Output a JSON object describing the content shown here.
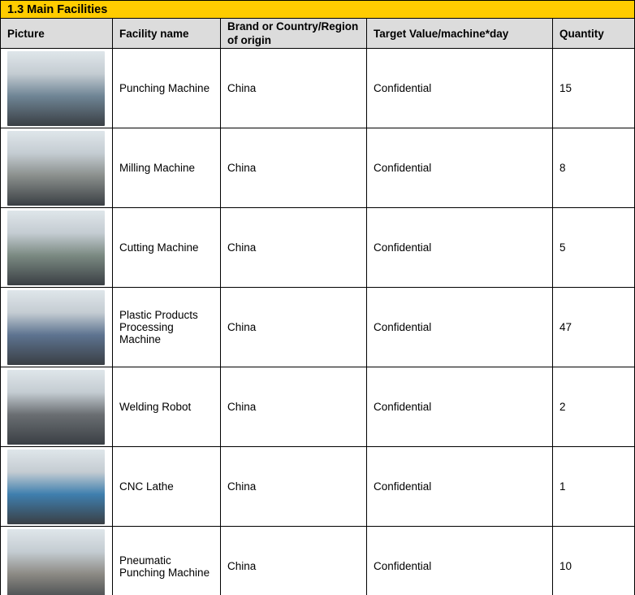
{
  "title": "1.3 Main Facilities",
  "headers": [
    "Picture",
    "Facility name",
    "Brand or Country/Region of origin",
    "Target Value/machine*day",
    "Quantity"
  ],
  "rows": [
    {
      "name": "Punching Machine",
      "origin": "China",
      "target": "Confidential",
      "qty": "15",
      "photo": "punching-machine-photo",
      "tone": "#6f8595"
    },
    {
      "name": "Milling Machine",
      "origin": "China",
      "target": "Confidential",
      "qty": "8",
      "photo": "milling-machine-photo",
      "tone": "#8a8f8c"
    },
    {
      "name": "Cutting Machine",
      "origin": "China",
      "target": "Confidential",
      "qty": "5",
      "photo": "cutting-machine-photo",
      "tone": "#7b8a82"
    },
    {
      "name": "Plastic Products Processing Machine",
      "origin": "China",
      "target": "Confidential",
      "qty": "47",
      "photo": "plastic-processing-machine-photo",
      "tone": "#5d7390"
    },
    {
      "name": "Welding Robot",
      "origin": "China",
      "target": "Confidential",
      "qty": "2",
      "photo": "welding-robot-photo",
      "tone": "#6a6e72"
    },
    {
      "name": "CNC Lathe",
      "origin": "China",
      "target": "Confidential",
      "qty": "1",
      "photo": "cnc-lathe-photo",
      "tone": "#3f7fae"
    },
    {
      "name": "Pneumatic Punching Machine",
      "origin": "China",
      "target": "Confidential",
      "qty": "10",
      "photo": "pneumatic-punching-machine-photo",
      "tone": "#8c8a84"
    }
  ],
  "colors": {
    "title_bg": "#ffcc00",
    "header_bg": "#dcdcdc"
  }
}
